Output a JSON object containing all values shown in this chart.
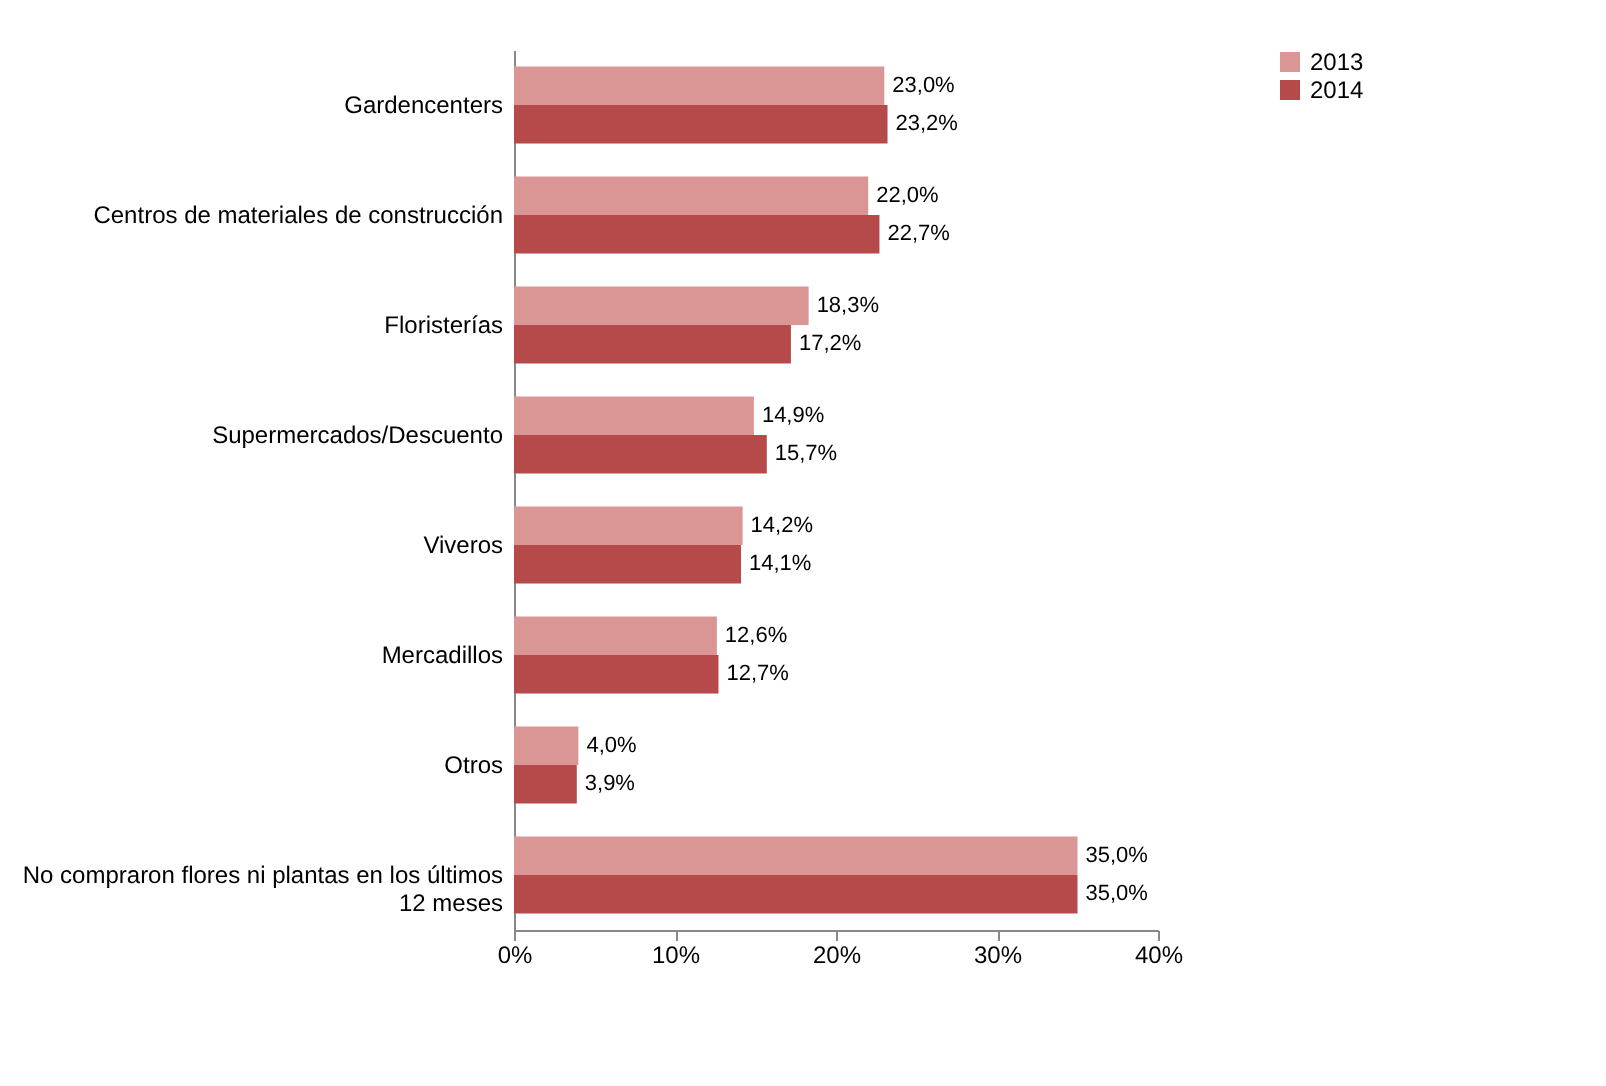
{
  "chart_data": {
    "type": "bar",
    "orientation": "horizontal",
    "categories": [
      "Gardencenters",
      "Centros de materiales de construcción",
      "Floristerías",
      "Supermercados/Descuento",
      "Viveros",
      "Mercadillos",
      "Otros",
      "No compraron flores ni plantas en los últimos 12 meses"
    ],
    "series": [
      {
        "name": "2013",
        "color": "#d99694",
        "values": [
          23.0,
          22.0,
          18.3,
          14.9,
          14.2,
          12.6,
          4.0,
          35.0
        ],
        "value_labels": [
          "23,0%",
          "22,0%",
          "18,3%",
          "14,9%",
          "14,2%",
          "12,6%",
          "4,0%",
          "35,0%"
        ]
      },
      {
        "name": "2014",
        "color": "#b6494a",
        "values": [
          23.2,
          22.7,
          17.2,
          15.7,
          14.1,
          12.7,
          3.9,
          35.0
        ],
        "value_labels": [
          "23,2%",
          "22,7%",
          "17,2%",
          "15,7%",
          "14,1%",
          "12,7%",
          "3,9%",
          "35,0%"
        ]
      }
    ],
    "xlim": [
      0,
      40
    ],
    "xticks": [
      {
        "value": 0,
        "label": "0%"
      },
      {
        "value": 10,
        "label": "10%"
      },
      {
        "value": 20,
        "label": "20%"
      },
      {
        "value": 30,
        "label": "30%"
      },
      {
        "value": 40,
        "label": "40%"
      }
    ],
    "grid": false,
    "legend": "right"
  }
}
